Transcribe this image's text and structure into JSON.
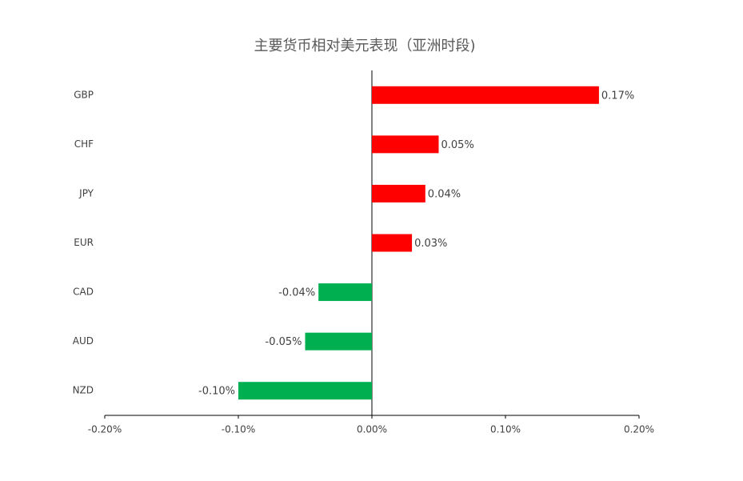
{
  "chart_data": {
    "type": "hbar",
    "title": "主要货币相对美元表现（亚洲时段)",
    "categories": [
      "GBP",
      "CHF",
      "JPY",
      "EUR",
      "CAD",
      "AUD",
      "NZD"
    ],
    "values": [
      0.17,
      0.05,
      0.04,
      0.03,
      -0.04,
      -0.05,
      -0.1
    ],
    "value_labels": [
      "0.17%",
      "0.05%",
      "0.04%",
      "0.03%",
      "-0.04%",
      "-0.05%",
      "-0.10%"
    ],
    "colors": [
      "#ff0000",
      "#ff0000",
      "#ff0000",
      "#ff0000",
      "#00b050",
      "#00b050",
      "#00b050"
    ],
    "xlim": [
      -0.2,
      0.2
    ],
    "xticks": [
      {
        "value": -0.2,
        "label": "-0.20%"
      },
      {
        "value": -0.1,
        "label": "-0.10%"
      },
      {
        "value": 0,
        "label": "0.00%"
      },
      {
        "value": 0.1,
        "label": "0.10%"
      },
      {
        "value": 0.2,
        "label": "0.20%"
      }
    ]
  }
}
